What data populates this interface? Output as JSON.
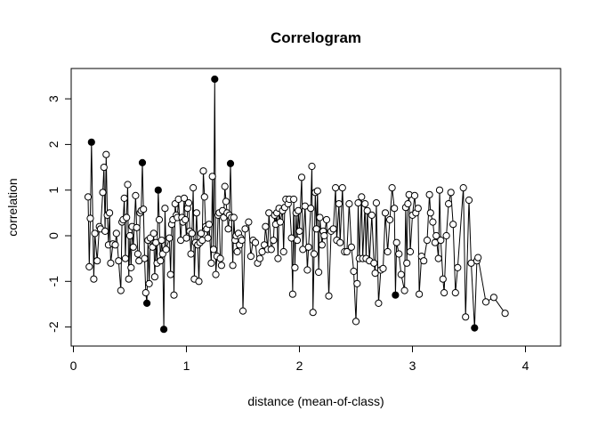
{
  "chart_data": {
    "type": "scatter",
    "title": "Correlogram",
    "xlabel": "distance (mean-of-class)",
    "ylabel": "correlation",
    "xlim": [
      0,
      4.22
    ],
    "ylim": [
      -2.2,
      3.6
    ],
    "x_ticks": [
      0,
      1,
      2,
      3,
      4
    ],
    "y_ticks": [
      -2,
      -1,
      0,
      1,
      2,
      3
    ],
    "grid": false,
    "legend": "none",
    "marker_style": "open circles connected by lines; filled circles mark significant values",
    "colors": {
      "line": "#000000",
      "marker": "#000000",
      "background": "#ffffff"
    },
    "series": [
      {
        "points": [
          [
            0.13,
            0.85,
            0
          ],
          [
            0.14,
            -0.68,
            0
          ],
          [
            0.15,
            0.38,
            0
          ],
          [
            0.16,
            2.05,
            1
          ],
          [
            0.18,
            -0.95,
            0
          ],
          [
            0.19,
            0.05,
            0
          ],
          [
            0.21,
            -0.55,
            0
          ],
          [
            0.23,
            0.2,
            0
          ],
          [
            0.24,
            0.15,
            0
          ],
          [
            0.26,
            0.95,
            0
          ],
          [
            0.27,
            1.5,
            0
          ],
          [
            0.28,
            0.1,
            0
          ],
          [
            0.29,
            1.78,
            0
          ],
          [
            0.3,
            0.45,
            0
          ],
          [
            0.31,
            -0.2,
            0
          ],
          [
            0.32,
            0.5,
            0
          ],
          [
            0.33,
            -0.6,
            0
          ],
          [
            0.35,
            -0.18,
            0
          ],
          [
            0.37,
            -0.2,
            0
          ],
          [
            0.38,
            0.05,
            0
          ],
          [
            0.4,
            -0.55,
            0
          ],
          [
            0.42,
            -1.2,
            0
          ],
          [
            0.43,
            0.3,
            0
          ],
          [
            0.44,
            0.35,
            0
          ],
          [
            0.45,
            0.82,
            0
          ],
          [
            0.46,
            -0.5,
            0
          ],
          [
            0.47,
            0.4,
            0
          ],
          [
            0.48,
            1.12,
            0
          ],
          [
            0.49,
            -0.95,
            0
          ],
          [
            0.5,
            0.0,
            0
          ],
          [
            0.51,
            -0.7,
            0
          ],
          [
            0.52,
            0.2,
            0
          ],
          [
            0.53,
            -0.25,
            0
          ],
          [
            0.55,
            0.88,
            0
          ],
          [
            0.56,
            0.18,
            0
          ],
          [
            0.57,
            -0.4,
            0
          ],
          [
            0.58,
            -0.55,
            0
          ],
          [
            0.59,
            0.5,
            0
          ],
          [
            0.6,
            0.55,
            0
          ],
          [
            0.61,
            1.6,
            1
          ],
          [
            0.62,
            0.58,
            0
          ],
          [
            0.63,
            -0.5,
            0
          ],
          [
            0.64,
            -1.25,
            0
          ],
          [
            0.65,
            -1.48,
            1
          ],
          [
            0.66,
            -0.1,
            0
          ],
          [
            0.67,
            -1.05,
            0
          ],
          [
            0.68,
            -0.05,
            0
          ],
          [
            0.7,
            -0.25,
            0
          ],
          [
            0.71,
            0.05,
            0
          ],
          [
            0.72,
            -0.9,
            0
          ],
          [
            0.73,
            -0.15,
            0
          ],
          [
            0.74,
            -0.6,
            0
          ],
          [
            0.75,
            1.0,
            1
          ],
          [
            0.76,
            0.35,
            0
          ],
          [
            0.77,
            -0.55,
            0
          ],
          [
            0.78,
            -0.1,
            0
          ],
          [
            0.79,
            -0.4,
            0
          ],
          [
            0.8,
            -2.05,
            1
          ],
          [
            0.81,
            0.6,
            0
          ],
          [
            0.82,
            -0.3,
            0
          ],
          [
            0.85,
            -0.05,
            0
          ],
          [
            0.86,
            -0.85,
            0
          ],
          [
            0.87,
            0.25,
            0
          ],
          [
            0.88,
            0.35,
            0
          ],
          [
            0.89,
            -1.3,
            0
          ],
          [
            0.9,
            0.7,
            0
          ],
          [
            0.91,
            0.45,
            0
          ],
          [
            0.92,
            0.4,
            0
          ],
          [
            0.93,
            0.8,
            0
          ],
          [
            0.95,
            -0.1,
            0
          ],
          [
            0.96,
            0.4,
            0
          ],
          [
            0.97,
            0.3,
            0
          ],
          [
            0.98,
            0.82,
            0
          ],
          [
            0.99,
            0.35,
            0
          ],
          [
            1.0,
            -0.05,
            0
          ],
          [
            1.01,
            0.6,
            0
          ],
          [
            1.02,
            0.72,
            0
          ],
          [
            1.03,
            0.1,
            0
          ],
          [
            1.04,
            -0.4,
            0
          ],
          [
            1.05,
            0.05,
            0
          ],
          [
            1.06,
            1.05,
            0
          ],
          [
            1.07,
            -0.95,
            0
          ],
          [
            1.08,
            -0.15,
            0
          ],
          [
            1.09,
            0.5,
            0
          ],
          [
            1.1,
            -0.2,
            0
          ],
          [
            1.11,
            -1.0,
            0
          ],
          [
            1.12,
            -0.15,
            0
          ],
          [
            1.13,
            0.05,
            0
          ],
          [
            1.14,
            -0.1,
            0
          ],
          [
            1.15,
            1.42,
            0
          ],
          [
            1.16,
            0.85,
            0
          ],
          [
            1.17,
            0.2,
            0
          ],
          [
            1.18,
            0.15,
            0
          ],
          [
            1.19,
            -0.05,
            0
          ],
          [
            1.2,
            0.25,
            0
          ],
          [
            1.22,
            -0.6,
            0
          ],
          [
            1.23,
            1.3,
            0
          ],
          [
            1.24,
            -0.3,
            0
          ],
          [
            1.25,
            3.43,
            1
          ],
          [
            1.26,
            -0.85,
            0
          ],
          [
            1.27,
            -0.45,
            0
          ],
          [
            1.28,
            0.45,
            0
          ],
          [
            1.29,
            0.5,
            0
          ],
          [
            1.3,
            -0.5,
            0
          ],
          [
            1.31,
            -0.65,
            0
          ],
          [
            1.32,
            0.55,
            0
          ],
          [
            1.33,
            0.4,
            0
          ],
          [
            1.34,
            1.08,
            0
          ],
          [
            1.35,
            0.75,
            0
          ],
          [
            1.36,
            0.5,
            0
          ],
          [
            1.37,
            0.15,
            0
          ],
          [
            1.38,
            0.45,
            0
          ],
          [
            1.39,
            1.58,
            1
          ],
          [
            1.4,
            0.4,
            0
          ],
          [
            1.41,
            -0.65,
            0
          ],
          [
            1.42,
            0.4,
            0
          ],
          [
            1.43,
            -0.1,
            0
          ],
          [
            1.44,
            0.0,
            0
          ],
          [
            1.45,
            -0.35,
            0
          ],
          [
            1.46,
            0.05,
            0
          ],
          [
            1.47,
            -0.2,
            0
          ],
          [
            1.48,
            -0.05,
            0
          ],
          [
            1.49,
            -0.1,
            0
          ],
          [
            1.5,
            -1.65,
            0
          ],
          [
            1.52,
            0.15,
            0
          ],
          [
            1.55,
            0.3,
            0
          ],
          [
            1.57,
            -0.45,
            0
          ],
          [
            1.59,
            -0.1,
            0
          ],
          [
            1.61,
            -0.15,
            0
          ],
          [
            1.63,
            -0.6,
            0
          ],
          [
            1.65,
            -0.5,
            0
          ],
          [
            1.67,
            -0.35,
            0
          ],
          [
            1.69,
            -0.2,
            0
          ],
          [
            1.7,
            0.2,
            0
          ],
          [
            1.72,
            -0.3,
            0
          ],
          [
            1.73,
            0.5,
            0
          ],
          [
            1.75,
            -0.3,
            0
          ],
          [
            1.77,
            -0.1,
            0
          ],
          [
            1.78,
            0.45,
            0
          ],
          [
            1.79,
            0.25,
            0
          ],
          [
            1.8,
            0.5,
            0
          ],
          [
            1.81,
            -0.5,
            0
          ],
          [
            1.82,
            0.6,
            0
          ],
          [
            1.83,
            0.3,
            0
          ],
          [
            1.85,
            0.55,
            0
          ],
          [
            1.86,
            -0.35,
            0
          ],
          [
            1.87,
            0.62,
            0
          ],
          [
            1.88,
            0.8,
            0
          ],
          [
            1.9,
            0.7,
            0
          ],
          [
            1.91,
            0.8,
            0
          ],
          [
            1.93,
            -0.05,
            0
          ],
          [
            1.94,
            -1.28,
            0
          ],
          [
            1.95,
            0.8,
            0
          ],
          [
            1.96,
            -0.7,
            0
          ],
          [
            1.97,
            0.5,
            0
          ],
          [
            1.98,
            -0.1,
            0
          ],
          [
            1.99,
            0.55,
            0
          ],
          [
            2.0,
            0.1,
            0
          ],
          [
            2.02,
            1.28,
            0
          ],
          [
            2.03,
            -0.3,
            0
          ],
          [
            2.05,
            0.65,
            0
          ],
          [
            2.07,
            -0.75,
            0
          ],
          [
            2.08,
            -0.25,
            0
          ],
          [
            2.1,
            0.6,
            0
          ],
          [
            2.11,
            1.52,
            0
          ],
          [
            2.12,
            -1.68,
            0
          ],
          [
            2.13,
            -0.4,
            0
          ],
          [
            2.14,
            0.95,
            0
          ],
          [
            2.15,
            0.15,
            0
          ],
          [
            2.16,
            0.98,
            0
          ],
          [
            2.17,
            -0.8,
            0
          ],
          [
            2.18,
            0.4,
            0
          ],
          [
            2.2,
            -0.2,
            0
          ],
          [
            2.21,
            0.1,
            0
          ],
          [
            2.22,
            0.0,
            0
          ],
          [
            2.24,
            0.35,
            0
          ],
          [
            2.26,
            -1.32,
            0
          ],
          [
            2.28,
            0.1,
            0
          ],
          [
            2.3,
            0.15,
            0
          ],
          [
            2.32,
            1.05,
            0
          ],
          [
            2.33,
            -0.1,
            0
          ],
          [
            2.35,
            0.7,
            0
          ],
          [
            2.36,
            -0.15,
            0
          ],
          [
            2.38,
            1.05,
            0
          ],
          [
            2.4,
            -0.35,
            0
          ],
          [
            2.42,
            -0.35,
            0
          ],
          [
            2.44,
            0.7,
            0
          ],
          [
            2.46,
            -0.25,
            0
          ],
          [
            2.48,
            -0.78,
            0
          ],
          [
            2.5,
            -1.88,
            0
          ],
          [
            2.51,
            -1.05,
            0
          ],
          [
            2.52,
            0.72,
            0
          ],
          [
            2.53,
            -0.5,
            0
          ],
          [
            2.55,
            0.85,
            0
          ],
          [
            2.56,
            -0.5,
            0
          ],
          [
            2.58,
            0.7,
            0
          ],
          [
            2.59,
            -0.5,
            0
          ],
          [
            2.6,
            0.55,
            0
          ],
          [
            2.62,
            -0.55,
            0
          ],
          [
            2.64,
            0.45,
            0
          ],
          [
            2.66,
            -0.6,
            0
          ],
          [
            2.67,
            -0.82,
            0
          ],
          [
            2.68,
            0.72,
            0
          ],
          [
            2.7,
            -1.48,
            0
          ],
          [
            2.72,
            -0.75,
            0
          ],
          [
            2.74,
            -0.72,
            0
          ],
          [
            2.76,
            0.5,
            0
          ],
          [
            2.78,
            -0.35,
            0
          ],
          [
            2.8,
            0.35,
            0
          ],
          [
            2.82,
            1.05,
            0
          ],
          [
            2.84,
            0.6,
            0
          ],
          [
            2.85,
            -1.3,
            1
          ],
          [
            2.86,
            -0.15,
            0
          ],
          [
            2.88,
            -0.4,
            0
          ],
          [
            2.9,
            -0.85,
            0
          ],
          [
            2.93,
            -1.2,
            0
          ],
          [
            2.94,
            0.62,
            0
          ],
          [
            2.95,
            -0.6,
            0
          ],
          [
            2.96,
            0.7,
            0
          ],
          [
            2.97,
            0.9,
            0
          ],
          [
            2.98,
            -0.35,
            0
          ],
          [
            3.0,
            0.45,
            0
          ],
          [
            3.02,
            0.88,
            0
          ],
          [
            3.03,
            0.5,
            0
          ],
          [
            3.05,
            0.6,
            0
          ],
          [
            3.06,
            -1.28,
            0
          ],
          [
            3.08,
            -0.45,
            0
          ],
          [
            3.1,
            -0.55,
            0
          ],
          [
            3.13,
            -0.1,
            0
          ],
          [
            3.15,
            0.9,
            0
          ],
          [
            3.16,
            0.5,
            0
          ],
          [
            3.18,
            0.3,
            0
          ],
          [
            3.2,
            -0.15,
            0
          ],
          [
            3.21,
            0.0,
            0
          ],
          [
            3.23,
            -0.5,
            0
          ],
          [
            3.24,
            1.0,
            0
          ],
          [
            3.25,
            -0.1,
            0
          ],
          [
            3.27,
            -0.95,
            0
          ],
          [
            3.28,
            -1.25,
            0
          ],
          [
            3.3,
            0.0,
            0
          ],
          [
            3.32,
            0.7,
            0
          ],
          [
            3.34,
            0.95,
            0
          ],
          [
            3.36,
            0.25,
            0
          ],
          [
            3.38,
            -1.25,
            0
          ],
          [
            3.4,
            -0.7,
            0
          ],
          [
            3.45,
            1.05,
            0
          ],
          [
            3.47,
            -1.78,
            0
          ],
          [
            3.5,
            0.78,
            0
          ],
          [
            3.52,
            -0.6,
            0
          ],
          [
            3.55,
            -2.02,
            1
          ],
          [
            3.57,
            -0.55,
            0
          ],
          [
            3.58,
            -0.48,
            0
          ],
          [
            3.65,
            -1.45,
            0
          ],
          [
            3.72,
            -1.35,
            0
          ],
          [
            3.82,
            -1.7,
            0
          ]
        ]
      }
    ]
  }
}
